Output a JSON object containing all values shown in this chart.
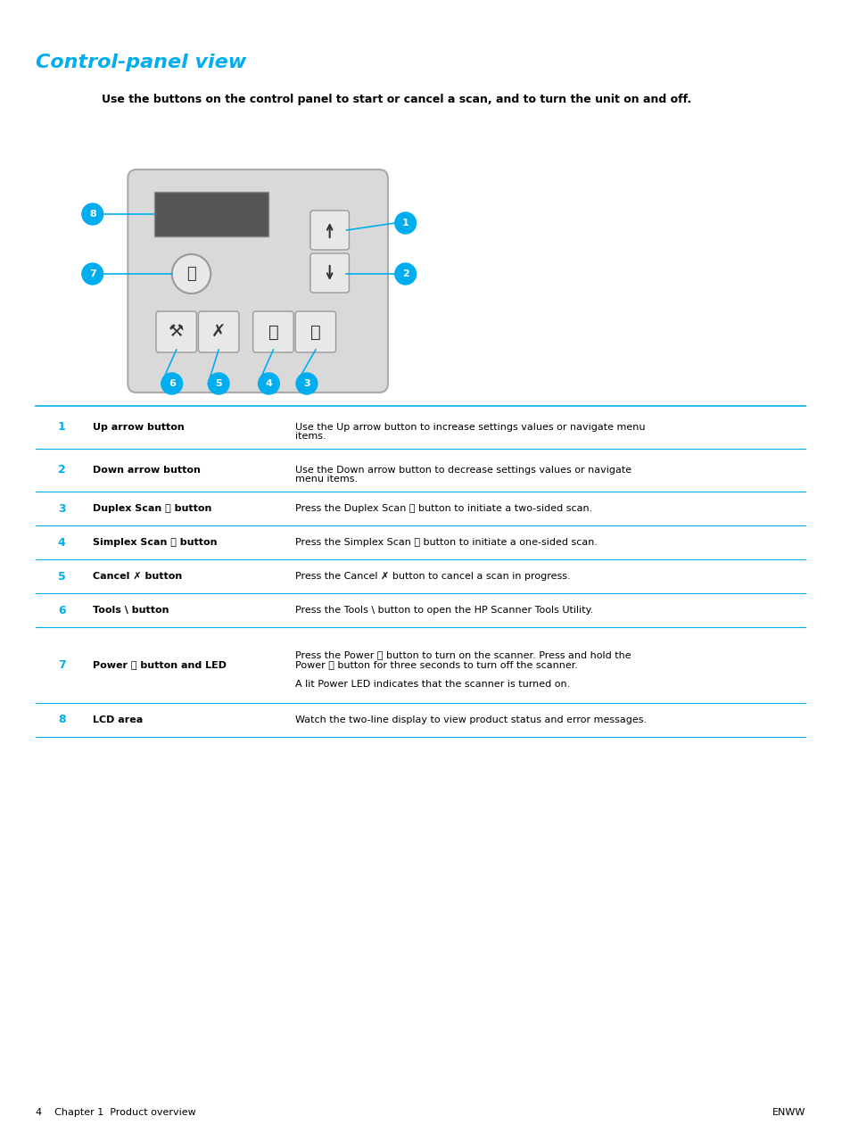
{
  "title": "Control-panel view",
  "title_color": "#00AEEF",
  "intro_text": "Use the buttons on the control panel to start or cancel a scan, and to turn the unit on and off.",
  "table_rows": [
    {
      "num": "1",
      "label": "Up arrow button",
      "description": "Use the Up arrow button to increase settings values or navigate menu\nitems."
    },
    {
      "num": "2",
      "label": "Down arrow button",
      "description": "Use the Down arrow button to decrease settings values or navigate\nmenu items."
    },
    {
      "num": "3",
      "label": "Duplex Scan ⎘ button",
      "description": "Press the Duplex Scan ⎘ button to initiate a two-sided scan."
    },
    {
      "num": "4",
      "label": "Simplex Scan ⎗ button",
      "description": "Press the Simplex Scan ⎗ button to initiate a one-sided scan."
    },
    {
      "num": "5",
      "label": "Cancel ✗ button",
      "description": "Press the Cancel ✗ button to cancel a scan in progress."
    },
    {
      "num": "6",
      "label": "Tools \\ button",
      "description": "Press the Tools \\ button to open the HP Scanner Tools Utility."
    },
    {
      "num": "7",
      "label": "Power ⏻ button and LED",
      "description": "Press the Power ⏻ button to turn on the scanner. Press and hold the\nPower ⏻ button for three seconds to turn off the scanner.\n\nA lit Power LED indicates that the scanner is turned on."
    },
    {
      "num": "8",
      "label": "LCD area",
      "description": "Watch the two-line display to view product status and error messages."
    }
  ],
  "footer_left": "4    Chapter 1  Product overview",
  "footer_right": "ENWW",
  "bg_color": "#FFFFFF",
  "text_color": "#000000",
  "cyan_color": "#00AEEF",
  "line_color": "#00AEEF",
  "panel_bg": "#D9D9D9",
  "panel_border": "#AAAAAA",
  "lcd_color": "#555555",
  "button_bg": "#E8E8E8",
  "button_border": "#999999"
}
